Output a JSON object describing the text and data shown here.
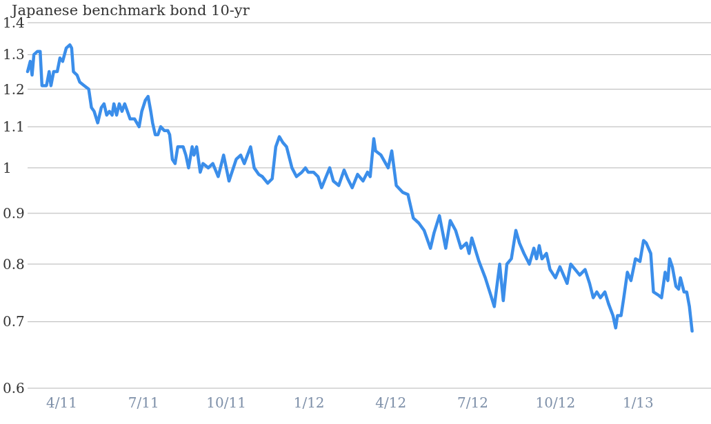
{
  "chart_data": {
    "type": "line",
    "title": "Japanese benchmark bond 10-yr",
    "x": [
      "2011-02-22",
      "2011-02-25",
      "2011-02-27",
      "2011-03-01",
      "2011-03-05",
      "2011-03-08",
      "2011-03-10",
      "2011-03-15",
      "2011-03-18",
      "2011-03-20",
      "2011-03-23",
      "2011-03-27",
      "2011-03-30",
      "2011-04-02",
      "2011-04-06",
      "2011-04-10",
      "2011-04-12",
      "2011-04-14",
      "2011-04-18",
      "2011-04-21",
      "2011-04-26",
      "2011-05-01",
      "2011-05-04",
      "2011-05-07",
      "2011-05-11",
      "2011-05-15",
      "2011-05-18",
      "2011-05-21",
      "2011-05-24",
      "2011-05-27",
      "2011-05-29",
      "2011-06-01",
      "2011-06-04",
      "2011-06-07",
      "2011-06-10",
      "2011-06-13",
      "2011-06-16",
      "2011-06-21",
      "2011-06-26",
      "2011-06-29",
      "2011-07-03",
      "2011-07-06",
      "2011-07-09",
      "2011-07-11",
      "2011-07-14",
      "2011-07-17",
      "2011-07-20",
      "2011-07-24",
      "2011-07-28",
      "2011-07-30",
      "2011-08-02",
      "2011-08-05",
      "2011-08-08",
      "2011-08-14",
      "2011-08-17",
      "2011-08-20",
      "2011-08-24",
      "2011-08-26",
      "2011-08-29",
      "2011-09-02",
      "2011-09-05",
      "2011-09-11",
      "2011-09-16",
      "2011-09-22",
      "2011-09-28",
      "2011-10-04",
      "2011-10-12",
      "2011-10-17",
      "2011-10-21",
      "2011-10-28",
      "2011-11-01",
      "2011-11-06",
      "2011-11-10",
      "2011-11-16",
      "2011-11-21",
      "2011-11-25",
      "2011-11-29",
      "2011-12-03",
      "2011-12-07",
      "2011-12-13",
      "2011-12-18",
      "2011-12-24",
      "2011-12-28",
      "2011-12-31",
      "2012-01-06",
      "2012-01-11",
      "2012-01-15",
      "2012-01-20",
      "2012-01-24",
      "2012-01-28",
      "2012-02-03",
      "2012-02-09",
      "2012-02-13",
      "2012-02-18",
      "2012-02-24",
      "2012-03-01",
      "2012-03-06",
      "2012-03-09",
      "2012-03-13",
      "2012-03-15",
      "2012-03-21",
      "2012-03-29",
      "2012-04-02",
      "2012-04-07",
      "2012-04-14",
      "2012-04-20",
      "2012-04-26",
      "2012-05-02",
      "2012-05-08",
      "2012-05-15",
      "2012-05-19",
      "2012-05-25",
      "2012-06-01",
      "2012-06-06",
      "2012-06-12",
      "2012-06-18",
      "2012-06-24",
      "2012-06-27",
      "2012-06-30",
      "2012-07-08",
      "2012-07-15",
      "2012-07-21",
      "2012-07-25",
      "2012-07-31",
      "2012-08-04",
      "2012-08-08",
      "2012-08-13",
      "2012-08-18",
      "2012-08-22",
      "2012-08-27",
      "2012-09-02",
      "2012-09-07",
      "2012-09-10",
      "2012-09-13",
      "2012-09-16",
      "2012-09-21",
      "2012-09-25",
      "2012-10-01",
      "2012-10-06",
      "2012-10-14",
      "2012-10-18",
      "2012-10-23",
      "2012-10-28",
      "2012-11-03",
      "2012-11-08",
      "2012-11-12",
      "2012-11-16",
      "2012-11-20",
      "2012-11-25",
      "2012-11-29",
      "2012-12-04",
      "2012-12-07",
      "2012-12-09",
      "2012-12-13",
      "2012-12-16",
      "2012-12-20",
      "2012-12-24",
      "2012-12-29",
      "2013-01-03",
      "2013-01-07",
      "2013-01-10",
      "2013-01-15",
      "2013-01-18",
      "2013-01-23",
      "2013-01-27",
      "2013-01-31",
      "2013-02-03",
      "2013-02-05",
      "2013-02-08",
      "2013-02-12",
      "2013-02-15",
      "2013-02-17",
      "2013-02-21",
      "2013-02-24",
      "2013-02-27",
      "2013-03-02"
    ],
    "series": [
      {
        "color": "#3b8eea",
        "values": [
          1.25,
          1.28,
          1.24,
          1.3,
          1.31,
          1.31,
          1.21,
          1.21,
          1.25,
          1.21,
          1.25,
          1.25,
          1.29,
          1.28,
          1.32,
          1.33,
          1.32,
          1.25,
          1.24,
          1.22,
          1.21,
          1.2,
          1.15,
          1.14,
          1.11,
          1.15,
          1.16,
          1.13,
          1.14,
          1.13,
          1.16,
          1.13,
          1.16,
          1.14,
          1.16,
          1.14,
          1.12,
          1.12,
          1.1,
          1.14,
          1.17,
          1.18,
          1.14,
          1.11,
          1.08,
          1.08,
          1.1,
          1.09,
          1.09,
          1.08,
          1.02,
          1.01,
          1.05,
          1.05,
          1.03,
          1.0,
          1.05,
          1.03,
          1.05,
          0.99,
          1.01,
          1.0,
          1.01,
          0.98,
          1.03,
          0.97,
          1.02,
          1.03,
          1.01,
          1.05,
          1.0,
          0.985,
          0.98,
          0.965,
          0.975,
          1.05,
          1.075,
          1.06,
          1.05,
          1.0,
          0.98,
          0.99,
          1.0,
          0.99,
          0.99,
          0.98,
          0.955,
          0.98,
          1.0,
          0.97,
          0.96,
          0.995,
          0.975,
          0.955,
          0.985,
          0.97,
          0.99,
          0.98,
          1.07,
          1.04,
          1.03,
          1.0,
          1.04,
          0.96,
          0.945,
          0.94,
          0.89,
          0.88,
          0.865,
          0.83,
          0.86,
          0.895,
          0.83,
          0.885,
          0.865,
          0.83,
          0.84,
          0.82,
          0.85,
          0.805,
          0.775,
          0.745,
          0.725,
          0.8,
          0.735,
          0.8,
          0.81,
          0.865,
          0.84,
          0.82,
          0.8,
          0.83,
          0.81,
          0.835,
          0.81,
          0.82,
          0.79,
          0.775,
          0.795,
          0.765,
          0.8,
          0.79,
          0.78,
          0.79,
          0.765,
          0.74,
          0.75,
          0.74,
          0.75,
          0.73,
          0.71,
          0.69,
          0.71,
          0.71,
          0.74,
          0.785,
          0.77,
          0.81,
          0.805,
          0.845,
          0.84,
          0.82,
          0.75,
          0.745,
          0.74,
          0.785,
          0.77,
          0.81,
          0.795,
          0.76,
          0.755,
          0.775,
          0.75,
          0.75,
          0.725,
          0.685
        ]
      }
    ],
    "xlim": [
      "2011-02-22",
      "2013-03-23"
    ],
    "xticks": [
      {
        "value": "2011-04-01",
        "label": "4/11"
      },
      {
        "value": "2011-07-01",
        "label": "7/11"
      },
      {
        "value": "2011-10-01",
        "label": "10/11"
      },
      {
        "value": "2012-01-01",
        "label": "1/12"
      },
      {
        "value": "2012-04-01",
        "label": "4/12"
      },
      {
        "value": "2012-07-01",
        "label": "7/12"
      },
      {
        "value": "2012-10-01",
        "label": "10/12"
      },
      {
        "value": "2013-01-01",
        "label": "1/13"
      }
    ],
    "ylim": [
      0.6,
      1.4
    ],
    "yticks": [
      0.6,
      0.7,
      0.8,
      0.9,
      1,
      1.1,
      1.2,
      1.3,
      1.4
    ],
    "log": "y",
    "grid": "y"
  }
}
